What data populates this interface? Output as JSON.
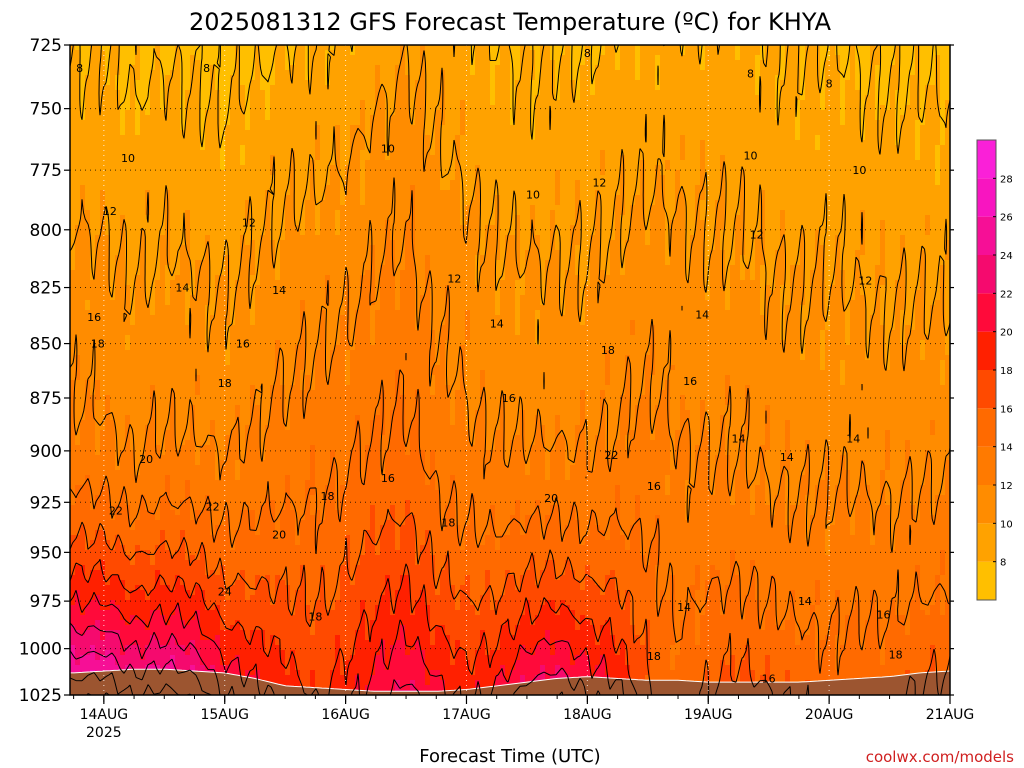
{
  "title": "2025081312 GFS Forecast Temperature (ºC) for KHYA",
  "x_axis_title": "Forecast Time (UTC)",
  "credit": "coolwx.com/models",
  "colors": {
    "ground": "#9c5530",
    "contour_line": "#000000",
    "bands": [
      {
        "t": 6,
        "color": "#ffbf00"
      },
      {
        "t": 8,
        "color": "#ffa200"
      },
      {
        "t": 10,
        "color": "#ff8c00"
      },
      {
        "t": 12,
        "color": "#ff7a00"
      },
      {
        "t": 14,
        "color": "#ff6a00"
      },
      {
        "t": 16,
        "color": "#ff4a00"
      },
      {
        "t": 18,
        "color": "#ff2000"
      },
      {
        "t": 20,
        "color": "#ff0a3a"
      },
      {
        "t": 22,
        "color": "#f50a6e"
      },
      {
        "t": 24,
        "color": "#f60f96"
      },
      {
        "t": 26,
        "color": "#f815c0"
      },
      {
        "t": 28,
        "color": "#fa20d8"
      }
    ]
  },
  "chart_data": {
    "type": "heatmap",
    "title": "2025081312 GFS Forecast Temperature (ºC) for KHYA",
    "xlabel": "Forecast Time (UTC)",
    "ylabel": "",
    "x_ticks": [
      {
        "label": "14AUG",
        "sub": "2025",
        "day": 1
      },
      {
        "label": "15AUG",
        "sub": "",
        "day": 2
      },
      {
        "label": "16AUG",
        "sub": "",
        "day": 3
      },
      {
        "label": "17AUG",
        "sub": "",
        "day": 4
      },
      {
        "label": "18AUG",
        "sub": "",
        "day": 5
      },
      {
        "label": "19AUG",
        "sub": "",
        "day": 6
      },
      {
        "label": "20AUG",
        "sub": "",
        "day": 7
      },
      {
        "label": "21AUG",
        "sub": "",
        "day": 8
      }
    ],
    "xlim_days": [
      0.72,
      8.0
    ],
    "y_ticks": [
      "725",
      "750",
      "775",
      "800",
      "825",
      "850",
      "875",
      "900",
      "925",
      "950",
      "975",
      "1000",
      "1025"
    ],
    "ylim_hpa": [
      725,
      1025
    ],
    "y_scale": "log-pressure",
    "grid": true,
    "colorbar": {
      "ticks": [
        8,
        10,
        12,
        14,
        16,
        18,
        20,
        22,
        24,
        26,
        28
      ],
      "range": [
        6,
        30
      ],
      "placement": "right"
    },
    "contour_interval": 2,
    "series": [
      {
        "name": "Temperature (ºC) profile",
        "x": [
          0.75,
          1.0,
          1.25,
          1.5,
          1.75,
          2.0,
          2.25,
          2.5,
          2.75,
          3.0,
          3.25,
          3.5,
          3.75,
          4.0,
          4.25,
          4.5,
          4.75,
          5.0,
          5.25,
          5.5,
          5.75,
          6.0,
          6.25,
          6.5,
          6.75,
          7.0,
          7.25,
          7.5,
          7.75,
          8.0
        ],
        "t_725": [
          7.8,
          8.0,
          7.4,
          7.8,
          7.6,
          7.2,
          7.6,
          8.0,
          8.2,
          8.5,
          9.2,
          9.8,
          9.0,
          8.6,
          8.0,
          7.8,
          8.0,
          8.0,
          8.2,
          8.4,
          8.6,
          8.4,
          8.4,
          8.2,
          8.0,
          8.0,
          7.8,
          7.6,
          7.6,
          7.4
        ],
        "lapse": [
          7.6,
          7.0,
          6.8,
          6.9,
          7.1,
          7.3,
          7.6,
          7.8,
          8.0,
          8.1,
          8.0,
          7.5,
          6.7,
          6.2,
          6.4,
          6.6,
          6.3,
          6.1,
          6.5,
          7.0,
          5.6,
          5.7,
          5.5,
          5.4,
          5.5,
          5.6,
          5.8,
          6.0,
          6.2,
          6.4
        ],
        "sfc_bonus": [
          12.0,
          13.0,
          11.5,
          12.0,
          11.0,
          7.5,
          5.5,
          3.5,
          1.5,
          2.5,
          3.8,
          5.5,
          5.0,
          4.5,
          6.0,
          8.5,
          9.5,
          8.0,
          6.0,
          1.0,
          0.5,
          2.0,
          3.0,
          2.5,
          2.0,
          1.5,
          2.0,
          1.8,
          2.5,
          3.0
        ],
        "sfc_hpa": [
          1013,
          1012,
          1011,
          1011,
          1012,
          1013,
          1016,
          1020,
          1021,
          1022,
          1023,
          1023,
          1023,
          1022,
          1020,
          1018,
          1016,
          1015,
          1016,
          1017,
          1017,
          1018,
          1018,
          1018,
          1018,
          1017,
          1016,
          1015,
          1013,
          1012
        ]
      },
      {
        "name": "Contour labels (ºC)",
        "points": [
          {
            "d": 0.8,
            "p": 734,
            "v": 8
          },
          {
            "d": 1.85,
            "p": 734,
            "v": 8
          },
          {
            "d": 5.0,
            "p": 728,
            "v": 8
          },
          {
            "d": 6.35,
            "p": 736,
            "v": 8
          },
          {
            "d": 7.0,
            "p": 740,
            "v": 8
          },
          {
            "d": 1.2,
            "p": 770,
            "v": 10
          },
          {
            "d": 3.35,
            "p": 766,
            "v": 10
          },
          {
            "d": 4.55,
            "p": 785,
            "v": 10
          },
          {
            "d": 6.35,
            "p": 769,
            "v": 10
          },
          {
            "d": 7.25,
            "p": 775,
            "v": 10
          },
          {
            "d": 1.05,
            "p": 792,
            "v": 12
          },
          {
            "d": 2.2,
            "p": 797,
            "v": 12
          },
          {
            "d": 3.9,
            "p": 821,
            "v": 12
          },
          {
            "d": 5.1,
            "p": 780,
            "v": 12
          },
          {
            "d": 6.4,
            "p": 802,
            "v": 12
          },
          {
            "d": 7.3,
            "p": 822,
            "v": 12
          },
          {
            "d": 1.65,
            "p": 825,
            "v": 14
          },
          {
            "d": 2.45,
            "p": 826,
            "v": 14
          },
          {
            "d": 4.25,
            "p": 841,
            "v": 14
          },
          {
            "d": 5.95,
            "p": 837,
            "v": 14
          },
          {
            "d": 6.25,
            "p": 894,
            "v": 14
          },
          {
            "d": 6.65,
            "p": 903,
            "v": 14
          },
          {
            "d": 7.2,
            "p": 894,
            "v": 14
          },
          {
            "d": 5.8,
            "p": 978,
            "v": 14
          },
          {
            "d": 6.8,
            "p": 975,
            "v": 14
          },
          {
            "d": 0.92,
            "p": 838,
            "v": 16
          },
          {
            "d": 2.15,
            "p": 850,
            "v": 16
          },
          {
            "d": 3.35,
            "p": 913,
            "v": 16
          },
          {
            "d": 4.35,
            "p": 875,
            "v": 16
          },
          {
            "d": 5.85,
            "p": 867,
            "v": 16
          },
          {
            "d": 5.55,
            "p": 917,
            "v": 16
          },
          {
            "d": 7.45,
            "p": 982,
            "v": 16
          },
          {
            "d": 6.5,
            "p": 1016,
            "v": 16
          },
          {
            "d": 0.95,
            "p": 850,
            "v": 18
          },
          {
            "d": 2.0,
            "p": 868,
            "v": 18
          },
          {
            "d": 2.85,
            "p": 922,
            "v": 18
          },
          {
            "d": 3.85,
            "p": 935,
            "v": 18
          },
          {
            "d": 2.75,
            "p": 983,
            "v": 18
          },
          {
            "d": 5.17,
            "p": 853,
            "v": 18
          },
          {
            "d": 5.55,
            "p": 1004,
            "v": 18
          },
          {
            "d": 7.55,
            "p": 1003,
            "v": 18
          },
          {
            "d": 1.35,
            "p": 904,
            "v": 20
          },
          {
            "d": 2.45,
            "p": 941,
            "v": 20
          },
          {
            "d": 4.7,
            "p": 923,
            "v": 20
          },
          {
            "d": 1.1,
            "p": 929,
            "v": 22
          },
          {
            "d": 1.9,
            "p": 927,
            "v": 22
          },
          {
            "d": 5.2,
            "p": 902,
            "v": 22
          },
          {
            "d": 2.0,
            "p": 970,
            "v": 24
          }
        ]
      }
    ]
  }
}
